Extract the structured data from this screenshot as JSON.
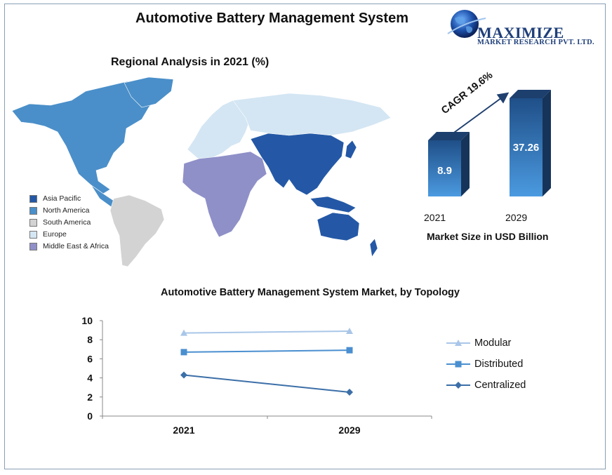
{
  "header": {
    "title": "Automotive Battery Management System",
    "logo_name": "MAXIMIZE",
    "logo_tagline": "MARKET RESEARCH PVT. LTD."
  },
  "regional": {
    "title": "Regional Analysis in 2021 (%)",
    "legend": [
      {
        "label": "Asia Pacific",
        "color": "#2458a6"
      },
      {
        "label": "North America",
        "color": "#4a8fc9"
      },
      {
        "label": "South America",
        "color": "#d3d3d3"
      },
      {
        "label": "Europe",
        "color": "#d4e6f3"
      },
      {
        "label": "Middle East & Africa",
        "color": "#8f90c8"
      }
    ]
  },
  "market_size": {
    "cagr_label": "CAGR 19.6%",
    "caption": "Market Size in USD Billion",
    "bars": [
      {
        "year": "2021",
        "value": 8.9,
        "value_label": "8.9"
      },
      {
        "year": "2029",
        "value": 37.26,
        "value_label": "37.26"
      }
    ]
  },
  "chart_data": {
    "type": "line",
    "title": "Automotive Battery Management System Market, by Topology",
    "categories": [
      "2021",
      "2029"
    ],
    "ylim": [
      0,
      10
    ],
    "yticks": [
      "0",
      "2",
      "4",
      "6",
      "8",
      "10"
    ],
    "legend_position": "right",
    "series": [
      {
        "name": "Modular",
        "values": [
          8.7,
          8.9
        ],
        "color": "#a9c6e8",
        "marker": "triangle"
      },
      {
        "name": "Distributed",
        "values": [
          6.7,
          6.9
        ],
        "color": "#4a8fd0",
        "marker": "square"
      },
      {
        "name": "Centralized",
        "values": [
          4.3,
          2.5
        ],
        "color": "#3c6fa8",
        "marker": "diamond"
      }
    ]
  }
}
